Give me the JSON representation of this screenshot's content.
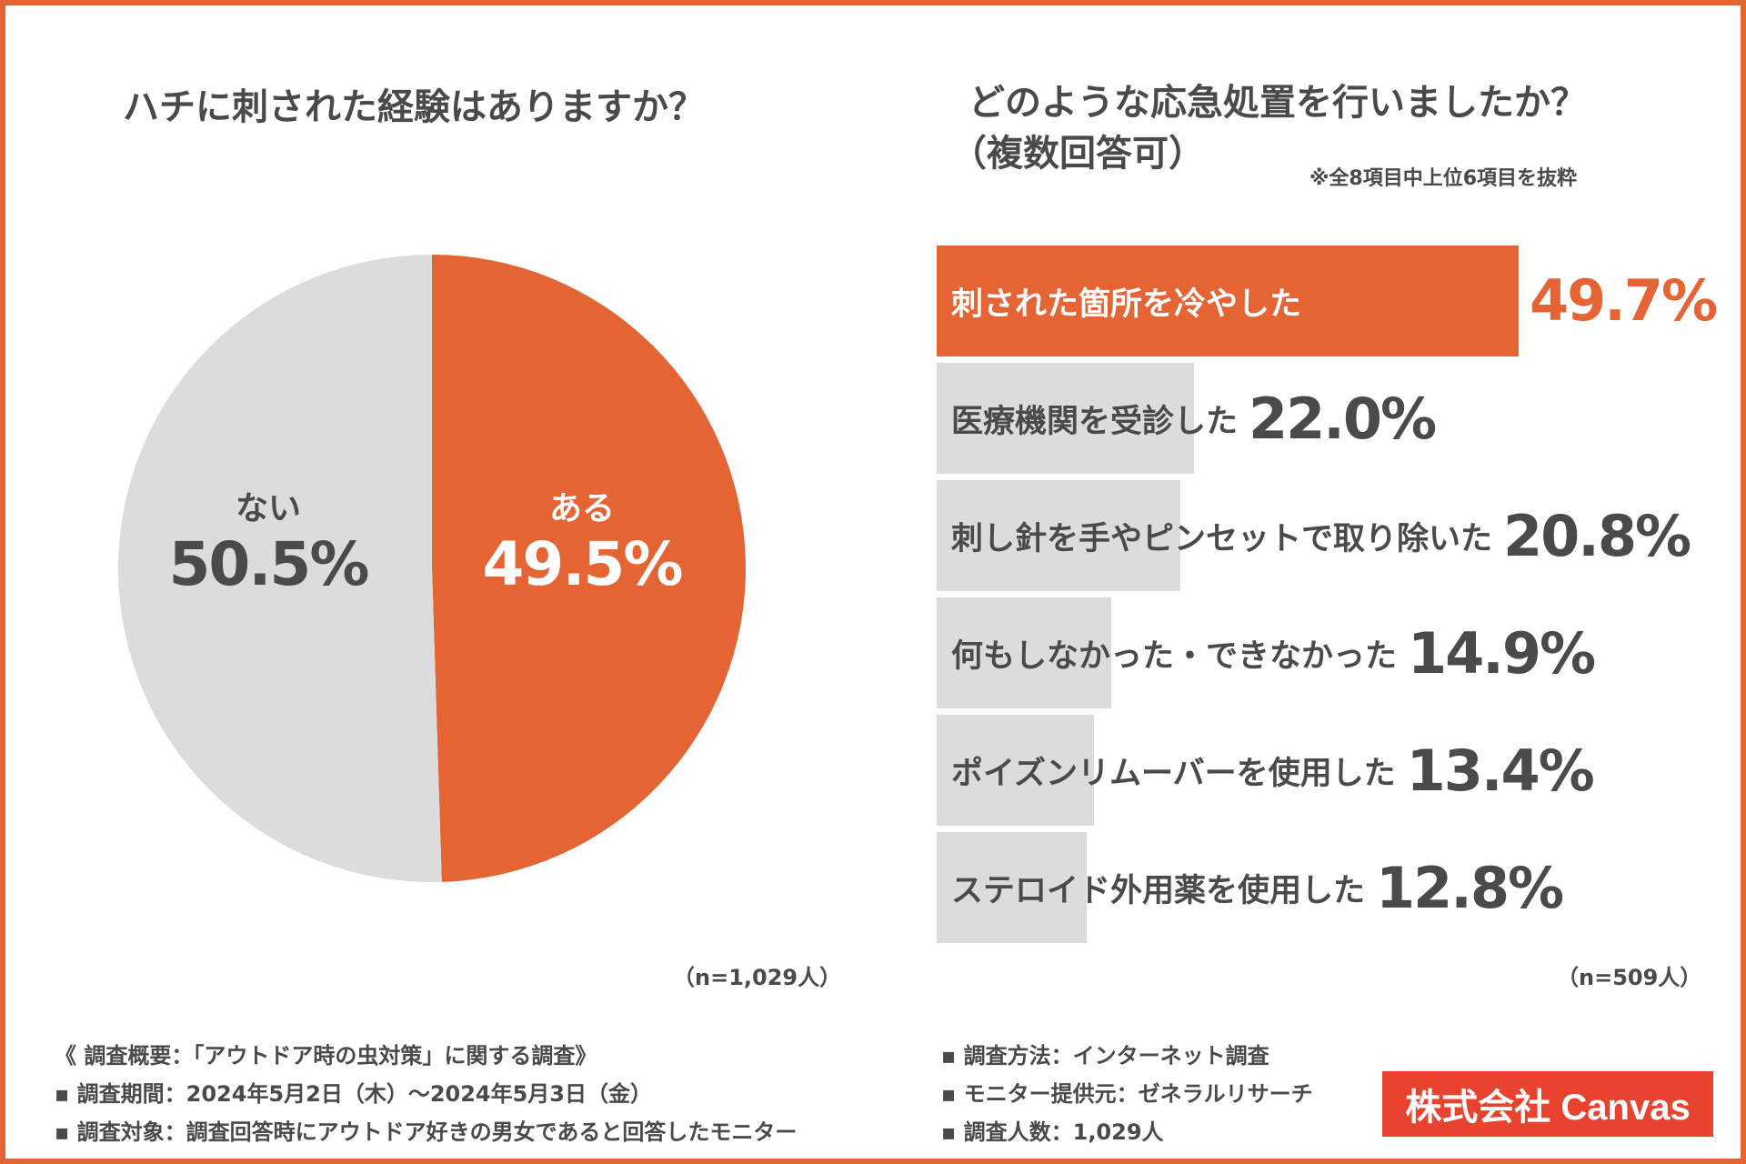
{
  "colors": {
    "accent": "#e56433",
    "gray": "#dcdcdc",
    "text": "#4a4a4a",
    "white": "#ffffff",
    "brand": "#e8432f"
  },
  "chart_data": [
    {
      "type": "pie",
      "title": "ハチに刺された経験はありますか？",
      "slices": [
        {
          "label": "ある",
          "value": 49.5,
          "display": "49.5%",
          "color": "#e56433"
        },
        {
          "label": "ない",
          "value": 50.5,
          "display": "50.5%",
          "color": "#dcdcdc"
        }
      ],
      "sample": "（n=1,029人）"
    },
    {
      "type": "bar",
      "orientation": "horizontal",
      "title_line1": "どのような応急処置を行いましたか？",
      "title_line2": "（複数回答可）",
      "note": "※全8項目中上位6項目を抜粋",
      "categories": [
        "刺された箇所を冷やした",
        "医療機関を受診した",
        "刺し針を手やピンセットで取り除いた",
        "何もしなかった・できなかった",
        "ポイズンリムーバーを使用した",
        "ステロイド外用薬を使用した"
      ],
      "values": [
        49.7,
        22.0,
        20.8,
        14.9,
        13.4,
        12.8
      ],
      "display": [
        "49.7%",
        "22.0%",
        "20.8%",
        "14.9%",
        "13.4%",
        "12.8%"
      ],
      "highlight_index": 0,
      "sample": "（n=509人）"
    }
  ],
  "footer": {
    "left": [
      "《 調査概要：「アウトドア時の虫対策」に関する調査》",
      "▪ 調査期間：2024年5月2日（木）～2024年5月3日（金）",
      "▪ 調査対象：調査回答時にアウトドア好きの男女であると回答したモニター"
    ],
    "right": [
      "▪ 調査方法：インターネット調査",
      "▪ モニター提供元：ゼネラルリサーチ",
      "▪ 調査人数：1,029人"
    ]
  },
  "company": "株式会社 Canvas"
}
